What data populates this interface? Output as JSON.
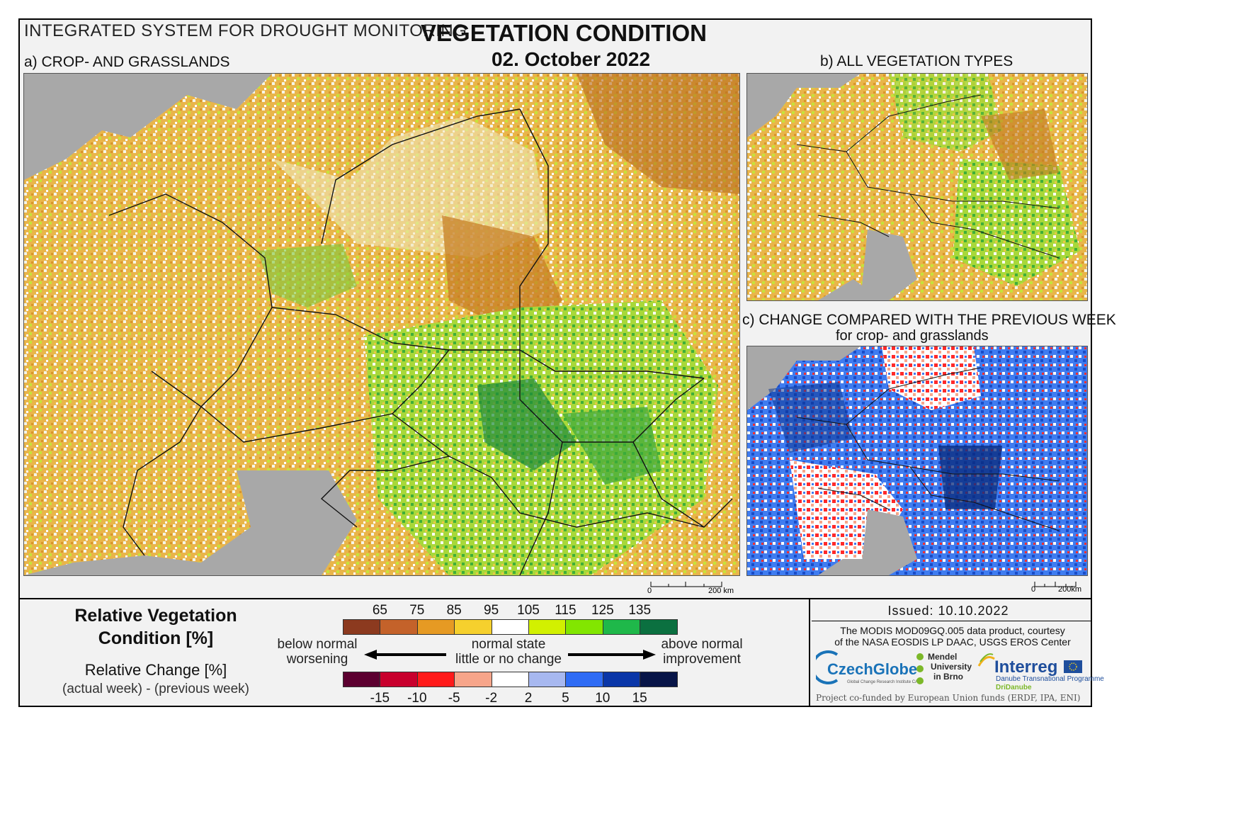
{
  "header": {
    "system_title": "INTEGRATED SYSTEM FOR DROUGHT MONITORING",
    "main_title": "VEGETATION CONDITION",
    "date": "02. October 2022"
  },
  "panels": {
    "a_label": "a) CROP- AND GRASSLANDS",
    "b_label": "b) ALL VEGETATION TYPES",
    "c_label": "c) CHANGE COMPARED WITH THE PREVIOUS WEEK",
    "c_sublabel": "for crop- and grasslands"
  },
  "scalebar": {
    "zero": "0",
    "distance_label": "200 km",
    "distance_label_small": "200km"
  },
  "legend": {
    "rvc_title_line1": "Relative Vegetation",
    "rvc_title_line2": "Condition [%]",
    "rc_title": "Relative Change [%]",
    "rc_subtitle": "(actual week) - (previous week)",
    "rvc_ticks": [
      "65",
      "75",
      "85",
      "95",
      "105",
      "115",
      "125",
      "135"
    ],
    "rvc_colors": [
      "#8c3a1f",
      "#c4622a",
      "#e69a23",
      "#f6d02d",
      "#ffffff",
      "#d2f000",
      "#82e600",
      "#1fb84a",
      "#0b7040"
    ],
    "rc_ticks": [
      "-15",
      "-10",
      "-5",
      "-2",
      "2",
      "5",
      "10",
      "15"
    ],
    "rc_colors": [
      "#5c0030",
      "#c8002d",
      "#ff1a1a",
      "#f7a58a",
      "#ffffff",
      "#a7b8f0",
      "#2f6cf5",
      "#0a36a8",
      "#081548"
    ],
    "below_top": "below normal",
    "below_bottom": "worsening",
    "normal_top": "normal state",
    "normal_bottom": "little or no change",
    "above_top": "above normal",
    "above_bottom": "improvement"
  },
  "info": {
    "issued": "Issued: 10.10.2022",
    "credit_line1": "The MODIS MOD09GQ.005 data product, courtesy",
    "credit_line2": "of the NASA EOSDIS LP DAAC, USGS EROS Center",
    "funded": "Project co-funded by European Union funds (ERDF, IPA, ENI)"
  },
  "logos": {
    "czechglobe": "CzechGlobe",
    "czechglobe_sub": "Global Change Research Institute CAS",
    "mendel_1": "Mendel",
    "mendel_2": "University",
    "mendel_3": "in Brno",
    "interreg": "Interreg",
    "dtp": "Danube Transnational Programme",
    "dridanube": "DriDanube"
  }
}
